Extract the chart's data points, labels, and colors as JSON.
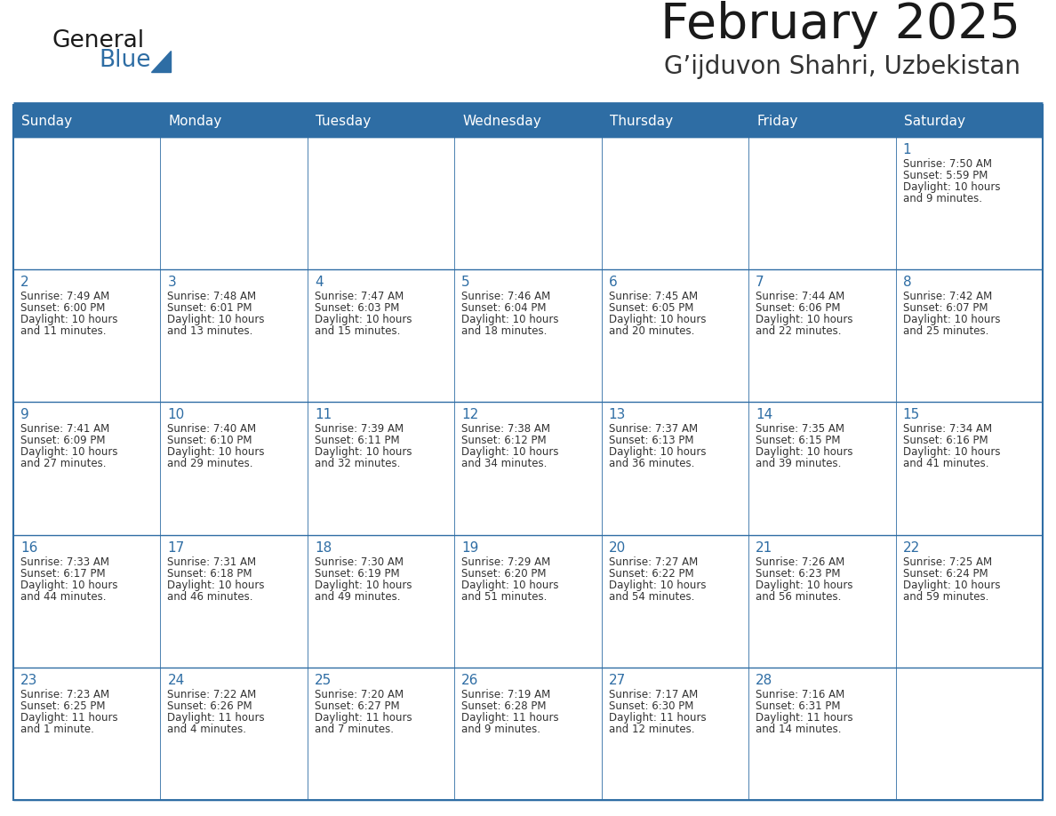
{
  "title": "February 2025",
  "subtitle": "G’ijduvon Shahri, Uzbekistan",
  "days_of_week": [
    "Sunday",
    "Monday",
    "Tuesday",
    "Wednesday",
    "Thursday",
    "Friday",
    "Saturday"
  ],
  "header_bg": "#2E6DA4",
  "header_text": "#FFFFFF",
  "border_color": "#2E6DA4",
  "day_num_color": "#2E6DA4",
  "cell_text_color": "#333333",
  "title_color": "#1a1a1a",
  "subtitle_color": "#333333",
  "logo_general_color": "#1a1a1a",
  "logo_blue_color": "#2E6DA4",
  "calendar_data": [
    [
      null,
      null,
      null,
      null,
      null,
      null,
      {
        "day": 1,
        "sunrise": "7:50 AM",
        "sunset": "5:59 PM",
        "daylight": "10 hours",
        "daylight2": "and 9 minutes."
      }
    ],
    [
      {
        "day": 2,
        "sunrise": "7:49 AM",
        "sunset": "6:00 PM",
        "daylight": "10 hours",
        "daylight2": "and 11 minutes."
      },
      {
        "day": 3,
        "sunrise": "7:48 AM",
        "sunset": "6:01 PM",
        "daylight": "10 hours",
        "daylight2": "and 13 minutes."
      },
      {
        "day": 4,
        "sunrise": "7:47 AM",
        "sunset": "6:03 PM",
        "daylight": "10 hours",
        "daylight2": "and 15 minutes."
      },
      {
        "day": 5,
        "sunrise": "7:46 AM",
        "sunset": "6:04 PM",
        "daylight": "10 hours",
        "daylight2": "and 18 minutes."
      },
      {
        "day": 6,
        "sunrise": "7:45 AM",
        "sunset": "6:05 PM",
        "daylight": "10 hours",
        "daylight2": "and 20 minutes."
      },
      {
        "day": 7,
        "sunrise": "7:44 AM",
        "sunset": "6:06 PM",
        "daylight": "10 hours",
        "daylight2": "and 22 minutes."
      },
      {
        "day": 8,
        "sunrise": "7:42 AM",
        "sunset": "6:07 PM",
        "daylight": "10 hours",
        "daylight2": "and 25 minutes."
      }
    ],
    [
      {
        "day": 9,
        "sunrise": "7:41 AM",
        "sunset": "6:09 PM",
        "daylight": "10 hours",
        "daylight2": "and 27 minutes."
      },
      {
        "day": 10,
        "sunrise": "7:40 AM",
        "sunset": "6:10 PM",
        "daylight": "10 hours",
        "daylight2": "and 29 minutes."
      },
      {
        "day": 11,
        "sunrise": "7:39 AM",
        "sunset": "6:11 PM",
        "daylight": "10 hours",
        "daylight2": "and 32 minutes."
      },
      {
        "day": 12,
        "sunrise": "7:38 AM",
        "sunset": "6:12 PM",
        "daylight": "10 hours",
        "daylight2": "and 34 minutes."
      },
      {
        "day": 13,
        "sunrise": "7:37 AM",
        "sunset": "6:13 PM",
        "daylight": "10 hours",
        "daylight2": "and 36 minutes."
      },
      {
        "day": 14,
        "sunrise": "7:35 AM",
        "sunset": "6:15 PM",
        "daylight": "10 hours",
        "daylight2": "and 39 minutes."
      },
      {
        "day": 15,
        "sunrise": "7:34 AM",
        "sunset": "6:16 PM",
        "daylight": "10 hours",
        "daylight2": "and 41 minutes."
      }
    ],
    [
      {
        "day": 16,
        "sunrise": "7:33 AM",
        "sunset": "6:17 PM",
        "daylight": "10 hours",
        "daylight2": "and 44 minutes."
      },
      {
        "day": 17,
        "sunrise": "7:31 AM",
        "sunset": "6:18 PM",
        "daylight": "10 hours",
        "daylight2": "and 46 minutes."
      },
      {
        "day": 18,
        "sunrise": "7:30 AM",
        "sunset": "6:19 PM",
        "daylight": "10 hours",
        "daylight2": "and 49 minutes."
      },
      {
        "day": 19,
        "sunrise": "7:29 AM",
        "sunset": "6:20 PM",
        "daylight": "10 hours",
        "daylight2": "and 51 minutes."
      },
      {
        "day": 20,
        "sunrise": "7:27 AM",
        "sunset": "6:22 PM",
        "daylight": "10 hours",
        "daylight2": "and 54 minutes."
      },
      {
        "day": 21,
        "sunrise": "7:26 AM",
        "sunset": "6:23 PM",
        "daylight": "10 hours",
        "daylight2": "and 56 minutes."
      },
      {
        "day": 22,
        "sunrise": "7:25 AM",
        "sunset": "6:24 PM",
        "daylight": "10 hours",
        "daylight2": "and 59 minutes."
      }
    ],
    [
      {
        "day": 23,
        "sunrise": "7:23 AM",
        "sunset": "6:25 PM",
        "daylight": "11 hours",
        "daylight2": "and 1 minute."
      },
      {
        "day": 24,
        "sunrise": "7:22 AM",
        "sunset": "6:26 PM",
        "daylight": "11 hours",
        "daylight2": "and 4 minutes."
      },
      {
        "day": 25,
        "sunrise": "7:20 AM",
        "sunset": "6:27 PM",
        "daylight": "11 hours",
        "daylight2": "and 7 minutes."
      },
      {
        "day": 26,
        "sunrise": "7:19 AM",
        "sunset": "6:28 PM",
        "daylight": "11 hours",
        "daylight2": "and 9 minutes."
      },
      {
        "day": 27,
        "sunrise": "7:17 AM",
        "sunset": "6:30 PM",
        "daylight": "11 hours",
        "daylight2": "and 12 minutes."
      },
      {
        "day": 28,
        "sunrise": "7:16 AM",
        "sunset": "6:31 PM",
        "daylight": "11 hours",
        "daylight2": "and 14 minutes."
      },
      null
    ]
  ]
}
